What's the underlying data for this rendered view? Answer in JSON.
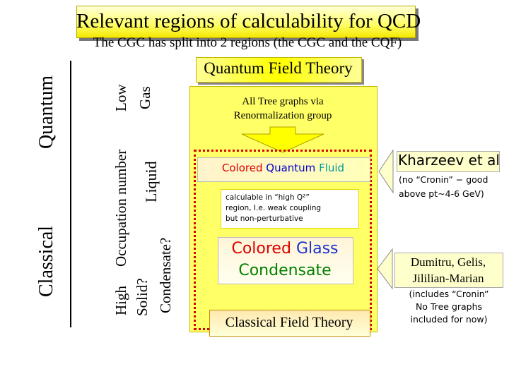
{
  "title": "Relevant regions of calculability for QCD",
  "subtitle": "The CGC has split into 2 regions (the CGC and the CQF)",
  "left_axis": {
    "quantum": "Quantum",
    "classical": "Classical",
    "high": "High",
    "occupation_number": "Occupation number",
    "low": "Low",
    "gas": "Gas",
    "liquid": "Liquid",
    "solid": "Solid?",
    "condensate": "Condensate?"
  },
  "qft_label": "Quantum Field Theory",
  "tree_graphs": {
    "line1": "All Tree graphs via",
    "line2": "Renormalization group"
  },
  "cqf": {
    "word1": "Colored",
    "word2": "Quantum",
    "word3": "Fluid"
  },
  "calc_note": {
    "line1": "calculable in “high Q²”",
    "line2": "region, I.e. weak coupling",
    "line3": "but non-perturbative"
  },
  "cgc": {
    "word1": "Colored",
    "word2": "Glass",
    "word3": "Condensate"
  },
  "cft_label": "Classical Field Theory",
  "kharzeev": {
    "name": "Kharzeev et al",
    "note_line1": "(no “Cronin” − good",
    "note_line2": "above pt~4-6 GeV)"
  },
  "dumitru": {
    "line1": "Dumitru, Gelis,",
    "line2": "Jililian-Marian",
    "note_line1": "(includes “Cronin”",
    "note_line2": "No Tree graphs",
    "note_line3": "included for now)"
  },
  "colors": {
    "yellow_panel": "#ffff66",
    "dotted_border": "#d40000",
    "quantum_blue": "#0000cc",
    "fluid_teal": "#009999",
    "colored_red": "#dd0000",
    "glass_blue": "#1a33cc",
    "condensate_green": "#008000"
  }
}
